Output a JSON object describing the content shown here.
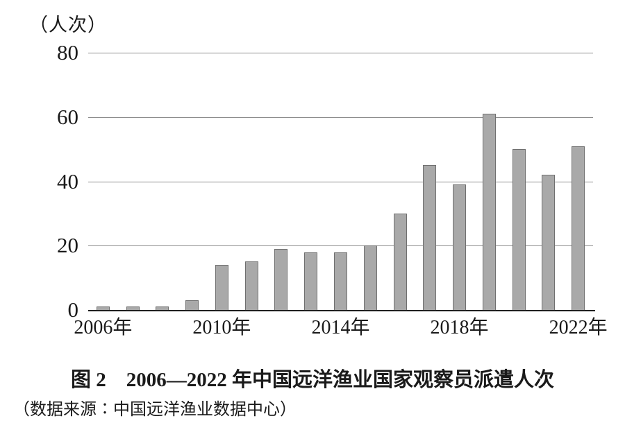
{
  "chart_data": {
    "type": "bar",
    "unit_label": "（人次）",
    "categories": [
      "2006",
      "2007",
      "2008",
      "2009",
      "2010",
      "2011",
      "2012",
      "2013",
      "2014",
      "2015",
      "2016",
      "2017",
      "2018",
      "2019",
      "2020",
      "2021",
      "2022"
    ],
    "values": [
      1,
      1,
      1,
      3,
      14,
      15,
      19,
      18,
      18,
      20,
      30,
      45,
      39,
      61,
      50,
      42,
      51
    ],
    "x_tick_labels": [
      "2006年",
      "2010年",
      "2014年",
      "2018年",
      "2022年"
    ],
    "x_tick_positions": [
      0,
      4,
      8,
      12,
      16
    ],
    "y_ticks": [
      0,
      20,
      40,
      60,
      80
    ],
    "ylim": [
      0,
      80
    ],
    "grid": true,
    "legend": "none",
    "bar_color": "#a9a9a9",
    "bar_border_color": "#6f6f6f",
    "gridline_color": "#8c8c8c",
    "axis_color": "#1f1f1f",
    "title": "图 2　2006—2022 年中国远洋渔业国家观察员派遣人次",
    "source": "（数据来源∶中国远洋渔业数据中心）"
  }
}
